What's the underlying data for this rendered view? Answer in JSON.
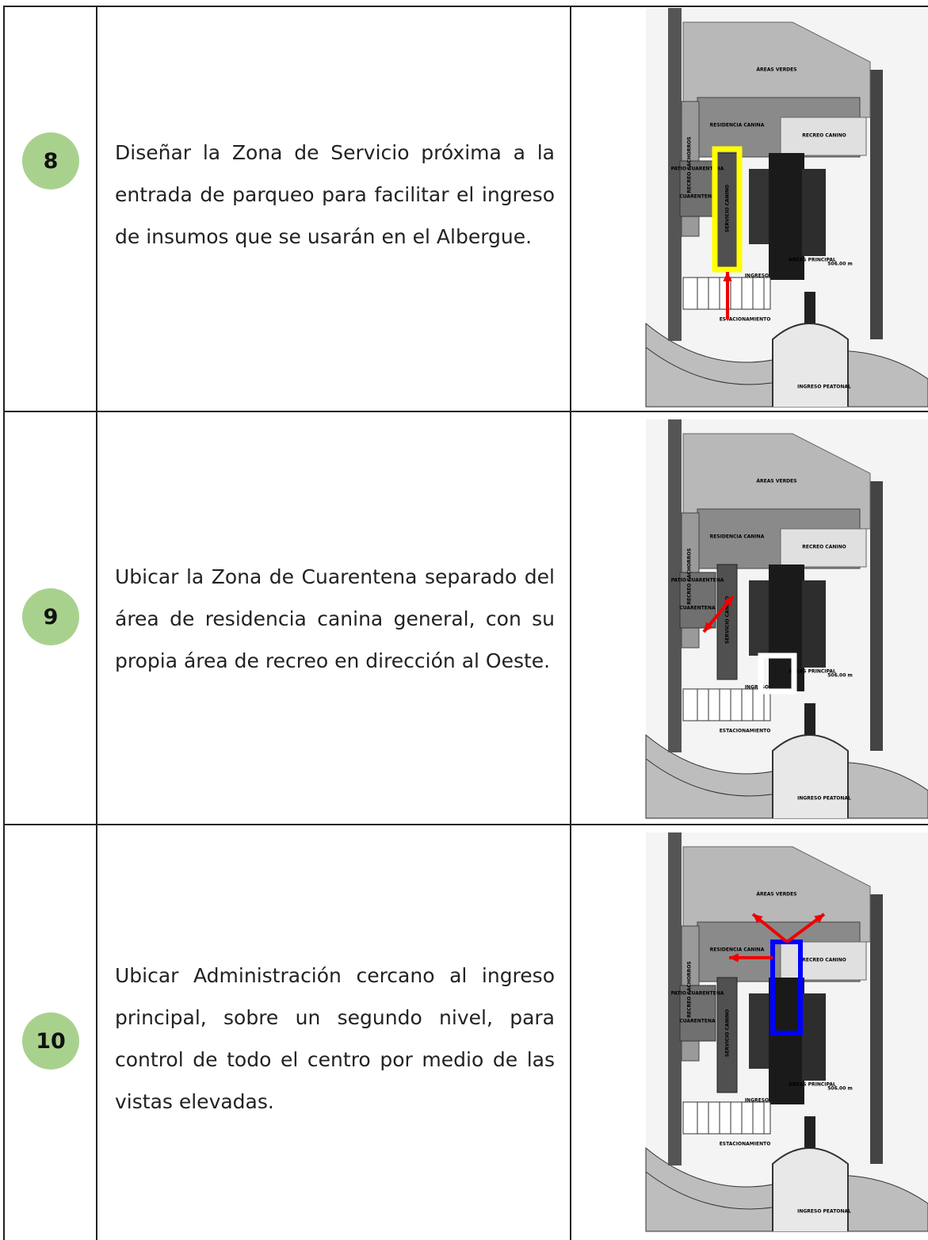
{
  "rows": [
    {
      "number": "8",
      "text": "Diseñar la Zona de Servicio próxima a la entrada de parqueo para facilitar el ingreso de insumos que se usarán en el Albergue."
    },
    {
      "number": "9",
      "text": "Ubicar la Zona de Cuarentena separado del área de residencia canina general, con su propia área de recreo en dirección al Oeste."
    },
    {
      "number": "10",
      "text": "Ubicar Administración cercano al ingreso principal, sobre un segundo nivel, para control de todo el centro por medio de las vistas elevadas."
    }
  ],
  "plan": {
    "labels": [
      "ÁREAS VERDES",
      "RESIDENCIA CANINA",
      "RECREO CANINO",
      "RECREO CACHORROS",
      "PATIO CUARENTENA",
      "CUARENTENA",
      "SERVICIO CANINO",
      "INGRESO",
      "ÁREAS PRINCIPAL",
      "506.00 m",
      "ESTACIONAMIENTO",
      "INGRESO PEATONAL"
    ]
  }
}
